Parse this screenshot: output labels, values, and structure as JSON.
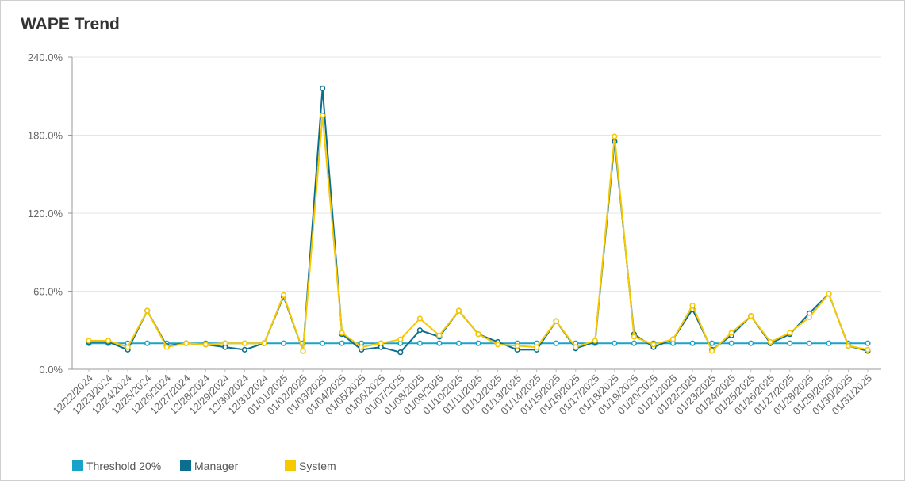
{
  "title": "WAPE Trend",
  "chart_data": {
    "type": "line",
    "title": "WAPE Trend",
    "xlabel": "",
    "ylabel": "",
    "ylim": [
      0,
      240
    ],
    "yticks": [
      "0.0%",
      "60.0%",
      "120.0%",
      "180.0%",
      "240.0%"
    ],
    "grid": true,
    "legend_position": "bottom-left",
    "categories": [
      "12/22/2024",
      "12/23/2024",
      "12/24/2024",
      "12/25/2024",
      "12/26/2024",
      "12/27/2024",
      "12/28/2024",
      "12/29/2024",
      "12/30/2024",
      "12/31/2024",
      "01/01/2025",
      "01/02/2025",
      "01/03/2025",
      "01/04/2025",
      "01/05/2025",
      "01/06/2025",
      "01/07/2025",
      "01/08/2025",
      "01/09/2025",
      "01/10/2025",
      "01/11/2025",
      "01/12/2025",
      "01/13/2025",
      "01/14/2025",
      "01/15/2025",
      "01/16/2025",
      "01/17/2025",
      "01/18/2025",
      "01/19/2025",
      "01/20/2025",
      "01/21/2025",
      "01/22/2025",
      "01/23/2025",
      "01/24/2025",
      "01/25/2025",
      "01/26/2025",
      "01/27/2025",
      "01/28/2025",
      "01/29/2025",
      "01/30/2025",
      "01/31/2025"
    ],
    "series": [
      {
        "name": "Threshold 20%",
        "color": "#1aa3c8",
        "values": [
          20,
          20,
          20,
          20,
          20,
          20,
          20,
          20,
          20,
          20,
          20,
          20,
          20,
          20,
          20,
          20,
          20,
          20,
          20,
          20,
          20,
          20,
          20,
          20,
          20,
          20,
          20,
          20,
          20,
          20,
          20,
          20,
          20,
          20,
          20,
          20,
          20,
          20,
          20,
          20,
          20
        ]
      },
      {
        "name": "Manager",
        "color": "#0c6e8e",
        "values": [
          21,
          21,
          15,
          45,
          18,
          20,
          19,
          17,
          15,
          20,
          56,
          14,
          216,
          27,
          15,
          17,
          13,
          30,
          25,
          45,
          27,
          21,
          15,
          15,
          37,
          16,
          21,
          175,
          27,
          17,
          23,
          46,
          15,
          26,
          41,
          20,
          27,
          43,
          58,
          18,
          14
        ]
      },
      {
        "name": "System",
        "color": "#f5c800",
        "values": [
          22,
          22,
          17,
          45,
          17,
          20,
          19,
          20,
          20,
          20,
          57,
          14,
          195,
          28,
          17,
          20,
          23,
          39,
          26,
          45,
          27,
          19,
          18,
          17,
          37,
          17,
          22,
          179,
          25,
          19,
          23,
          49,
          14,
          28,
          41,
          21,
          28,
          40,
          58,
          18,
          15
        ]
      }
    ]
  }
}
